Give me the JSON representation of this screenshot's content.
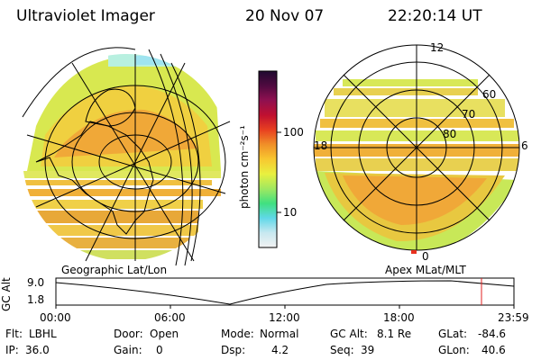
{
  "header": {
    "instrument": "Ultraviolet Imager",
    "date": "20 Nov 07",
    "time": "22:20:14 UT"
  },
  "colorbar": {
    "unit_label": "photon cm⁻²s⁻¹",
    "tick_100": "100",
    "tick_10": "10",
    "colors": [
      "#f2f2f2",
      "#c8e8f0",
      "#60d8e8",
      "#40e080",
      "#a0e860",
      "#e8f040",
      "#f8c830",
      "#f09028",
      "#e84020",
      "#c01030",
      "#901050",
      "#500a40",
      "#200a30"
    ]
  },
  "left_map": {
    "caption": "Geographic Lat/Lon"
  },
  "right_map": {
    "caption": "Apex MLat/MLT",
    "lat_labels": [
      "60",
      "70",
      "80"
    ],
    "mlt_labels": [
      "12",
      "18",
      "6",
      "0"
    ]
  },
  "altitude_plot": {
    "axis_label": "GC Alt",
    "y_max": "9.0",
    "y_min": "1.8",
    "x_labels": [
      "00:00",
      "06:00",
      "12:00",
      "18:00",
      "23:59"
    ]
  },
  "status": {
    "flt_label": "Flt:",
    "flt_value": "LBHL",
    "ip_label": "IP:",
    "ip_value": "36.0",
    "door_label": "Door:",
    "door_value": "Open",
    "gain_label": "Gain:",
    "gain_value": "0",
    "mode_label": "Mode:",
    "mode_value": "Normal",
    "dsp_label": "Dsp:",
    "dsp_value": "4.2",
    "gcalt_label": "GC Alt:",
    "gcalt_value": "8.1 Re",
    "seq_label": "Seq:",
    "seq_value": "39",
    "glat_label": "GLat:",
    "glat_value": "-84.6",
    "glon_label": "GLon:",
    "glon_value": "40.6"
  }
}
